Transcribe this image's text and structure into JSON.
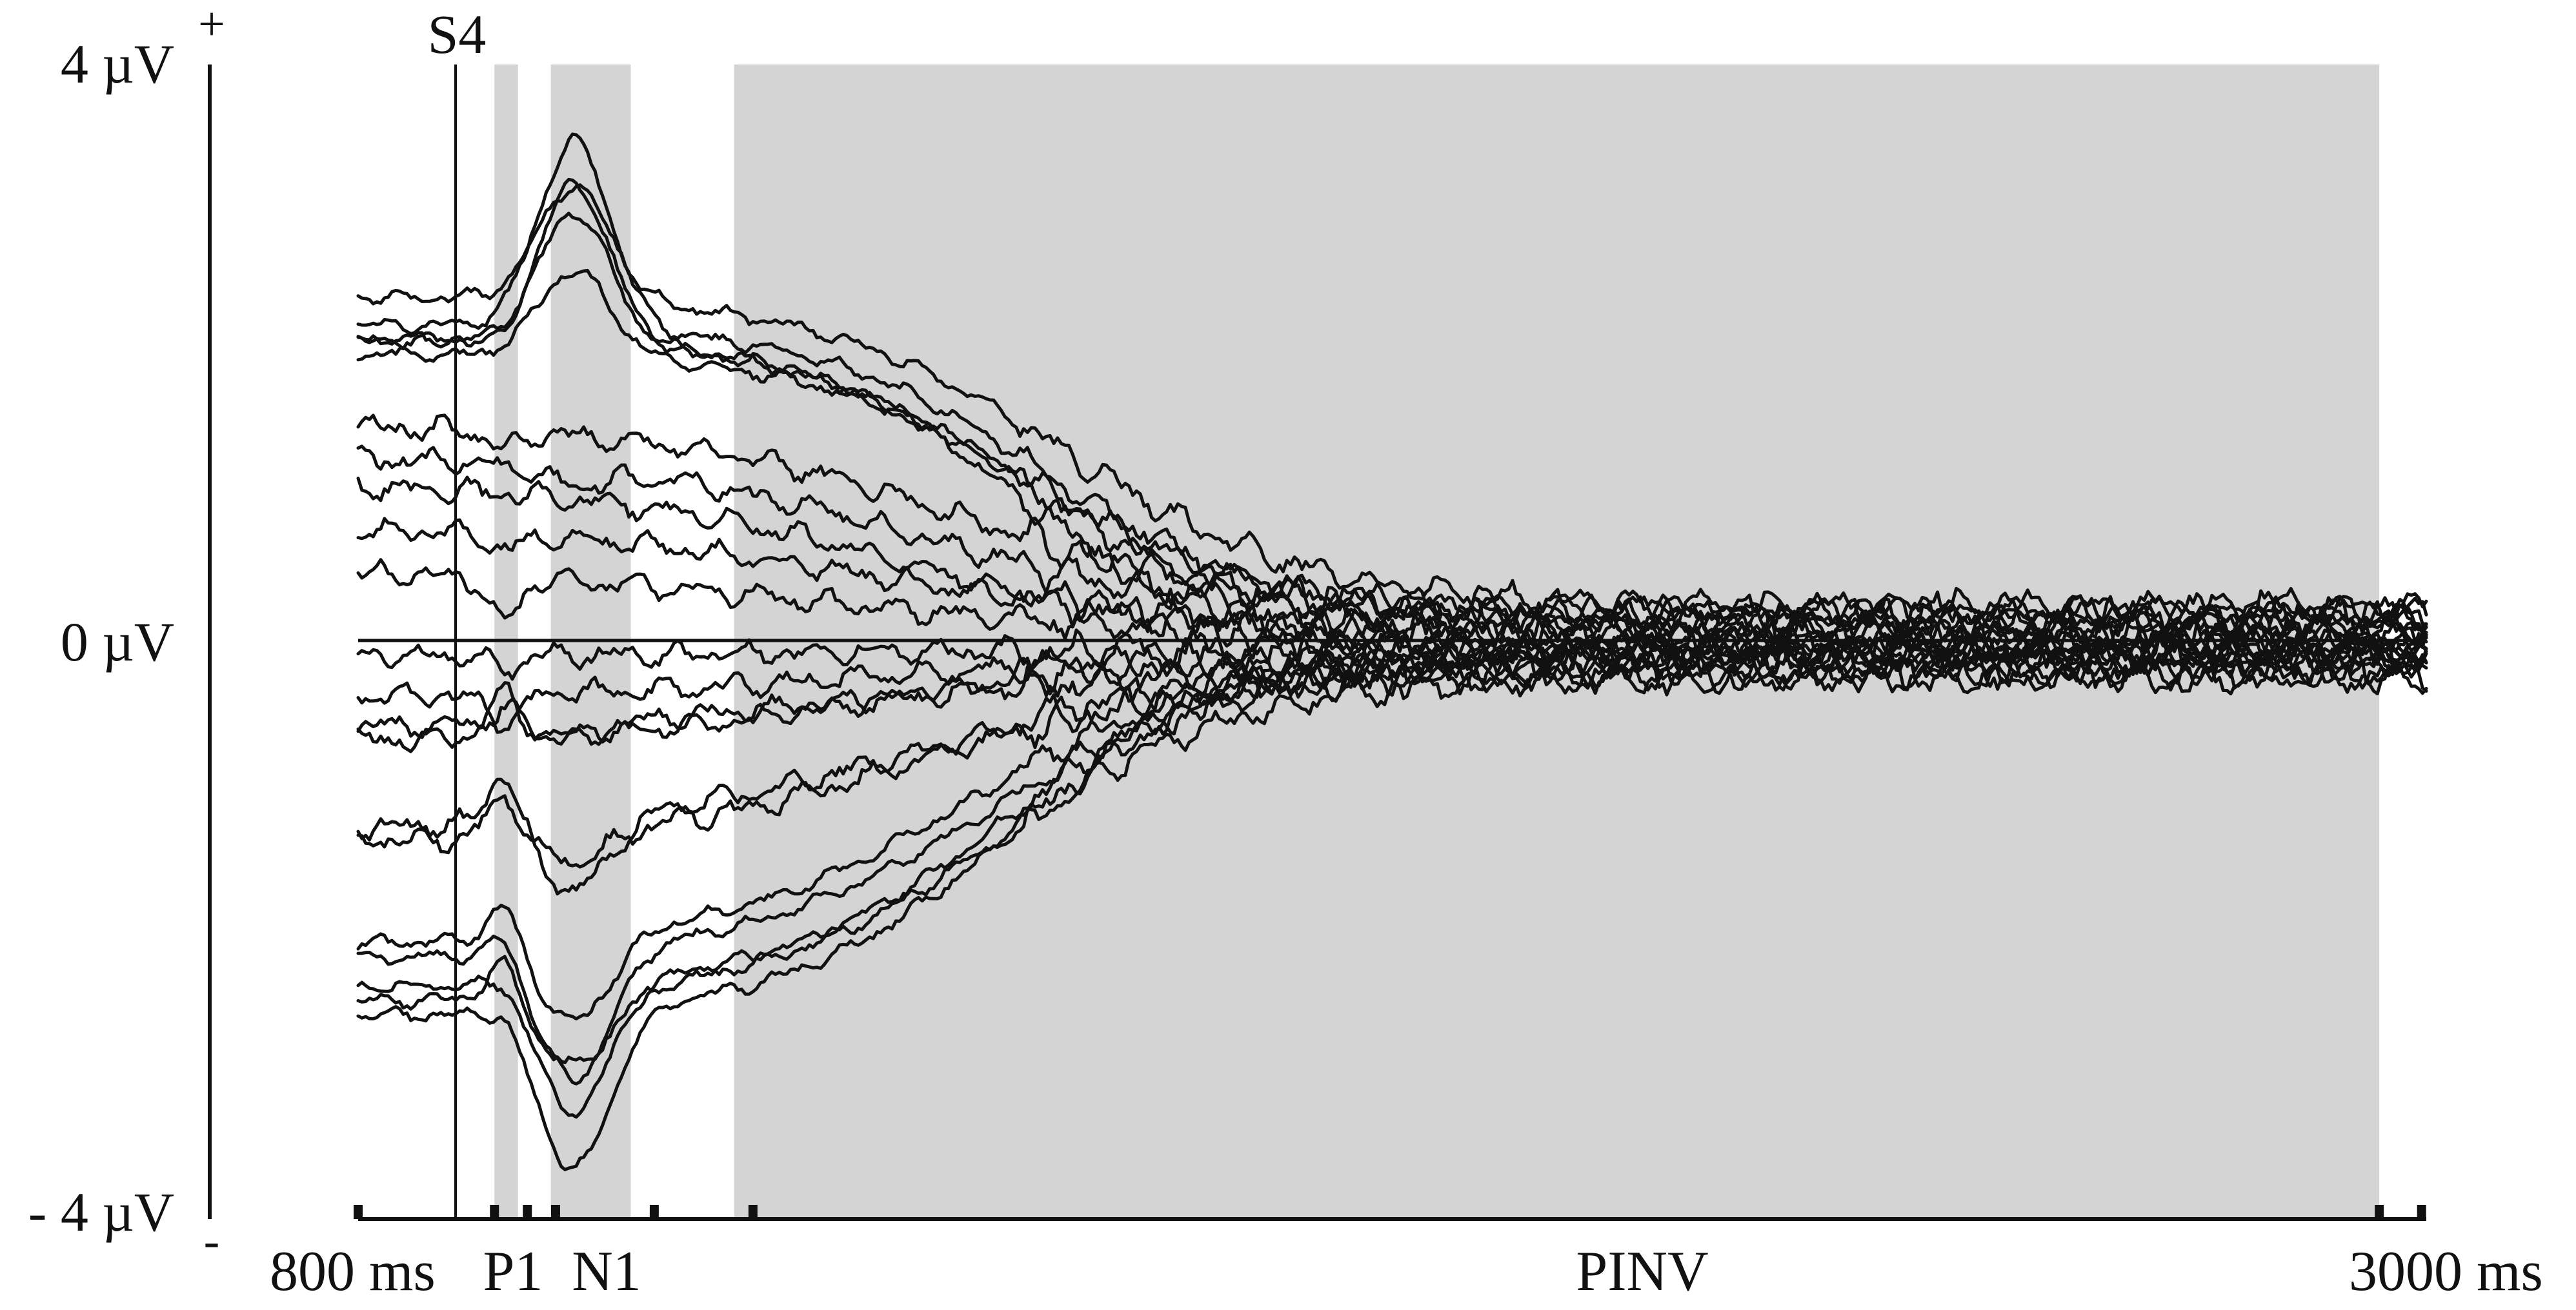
{
  "chart_data": {
    "type": "line",
    "title": "",
    "xlabel": "",
    "ylabel": "",
    "x_unit": "ms",
    "y_unit": "µV",
    "xlim": [
      800,
      3000
    ],
    "ylim": [
      -4,
      4
    ],
    "y_ticks": [
      {
        "value": 4,
        "label": "4 µV"
      },
      {
        "value": 0,
        "label": "0 µV"
      },
      {
        "value": -4,
        "label": "- 4 µV"
      }
    ],
    "polarity": {
      "top": "+",
      "bottom": "-"
    },
    "x_labels": {
      "start": "800 ms",
      "end": "3000 ms"
    },
    "onset": {
      "label": "S4",
      "x": 900
    },
    "windows": [
      {
        "label": "P1",
        "start": 945,
        "end": 970
      },
      {
        "label": "N1",
        "start": 1005,
        "end": 1090
      },
      {
        "label": "PINV",
        "start": 1200,
        "end": 2950
      }
    ],
    "x_ticks": [
      800,
      945,
      980,
      1010,
      1115,
      1220,
      2950,
      2995
    ],
    "window_labels": [
      "P1",
      "N1",
      "PINV"
    ],
    "series": [
      {
        "baseline": 2.3,
        "p1": 2.3,
        "n1": 3.2,
        "late": 2.4,
        "tail": 0.25,
        "decay_mid": 1550,
        "decay_width": 130,
        "noise": 0.03
      },
      {
        "baseline": 2.3,
        "p1": 2.3,
        "n1": 3.5,
        "late": 2.2,
        "tail": 0.15,
        "decay_mid": 1530,
        "decay_width": 120,
        "noise": 0.03
      },
      {
        "baseline": 2.3,
        "p1": 2.2,
        "n1": 3.2,
        "late": 2.1,
        "tail": 0.1,
        "decay_mid": 1510,
        "decay_width": 120,
        "noise": 0.03
      },
      {
        "baseline": 2.2,
        "p1": 2.2,
        "n1": 3.0,
        "late": 2.1,
        "tail": -0.05,
        "decay_mid": 1500,
        "decay_width": 110,
        "noise": 0.03
      },
      {
        "baseline": 2.0,
        "p1": 2.0,
        "n1": 2.6,
        "late": 2.0,
        "tail": 0.2,
        "decay_mid": 1520,
        "decay_width": 120,
        "noise": 0.03
      },
      {
        "baseline": 1.1,
        "p1": 1.0,
        "n1": 1.5,
        "late": 1.5,
        "tail": 0.2,
        "decay_mid": 1450,
        "decay_width": 150,
        "noise": 0.05
      },
      {
        "baseline": 0.9,
        "p1": 0.9,
        "n1": 1.2,
        "late": 1.3,
        "tail": 0.15,
        "decay_mid": 1400,
        "decay_width": 160,
        "noise": 0.05
      },
      {
        "baseline": 0.8,
        "p1": 0.8,
        "n1": 1.1,
        "late": 1.1,
        "tail": 0.0,
        "decay_mid": 1380,
        "decay_width": 160,
        "noise": 0.05
      },
      {
        "baseline": 0.8,
        "p1": 0.7,
        "n1": 0.8,
        "late": 0.8,
        "tail": 0.1,
        "decay_mid": 1350,
        "decay_width": 170,
        "noise": 0.05
      },
      {
        "baseline": 0.5,
        "p1": 0.2,
        "n1": 0.5,
        "late": 0.5,
        "tail": 0.05,
        "decay_mid": 1300,
        "decay_width": 180,
        "noise": 0.05
      },
      {
        "baseline": -0.1,
        "p1": -0.2,
        "n1": -0.1,
        "late": -0.1,
        "tail": -0.05,
        "decay_mid": 1300,
        "decay_width": 180,
        "noise": 0.05
      },
      {
        "baseline": -0.4,
        "p1": -0.6,
        "n1": -0.4,
        "late": -0.4,
        "tail": -0.1,
        "decay_mid": 1320,
        "decay_width": 170,
        "noise": 0.05
      },
      {
        "baseline": -0.7,
        "p1": -0.6,
        "n1": -0.7,
        "late": -0.6,
        "tail": -0.2,
        "decay_mid": 1350,
        "decay_width": 160,
        "noise": 0.05
      },
      {
        "baseline": -0.7,
        "p1": -0.4,
        "n1": -0.7,
        "late": -0.7,
        "tail": -0.05,
        "decay_mid": 1380,
        "decay_width": 160,
        "noise": 0.05
      },
      {
        "baseline": -1.4,
        "p1": -1.1,
        "n1": -1.6,
        "late": -1.4,
        "tail": -0.15,
        "decay_mid": 1420,
        "decay_width": 150,
        "noise": 0.05
      },
      {
        "baseline": -1.4,
        "p1": -1.0,
        "n1": -1.8,
        "late": -1.3,
        "tail": -0.2,
        "decay_mid": 1400,
        "decay_width": 150,
        "noise": 0.05
      },
      {
        "baseline": -2.0,
        "p1": -1.7,
        "n1": -2.7,
        "late": -2.1,
        "tail": -0.1,
        "decay_mid": 1450,
        "decay_width": 130,
        "noise": 0.03
      },
      {
        "baseline": -2.0,
        "p1": -1.8,
        "n1": -3.1,
        "late": -2.2,
        "tail": -0.15,
        "decay_mid": 1470,
        "decay_width": 130,
        "noise": 0.03
      },
      {
        "baseline": -2.1,
        "p1": -2.0,
        "n1": -3.3,
        "late": -2.4,
        "tail": -0.05,
        "decay_mid": 1490,
        "decay_width": 120,
        "noise": 0.03
      },
      {
        "baseline": -2.2,
        "p1": -2.1,
        "n1": -3.7,
        "late": -2.6,
        "tail": 0.0,
        "decay_mid": 1500,
        "decay_width": 120,
        "noise": 0.03
      },
      {
        "baseline": -2.3,
        "p1": -2.0,
        "n1": -3.0,
        "late": -2.5,
        "tail": -0.25,
        "decay_mid": 1480,
        "decay_width": 130,
        "noise": 0.03
      }
    ]
  }
}
